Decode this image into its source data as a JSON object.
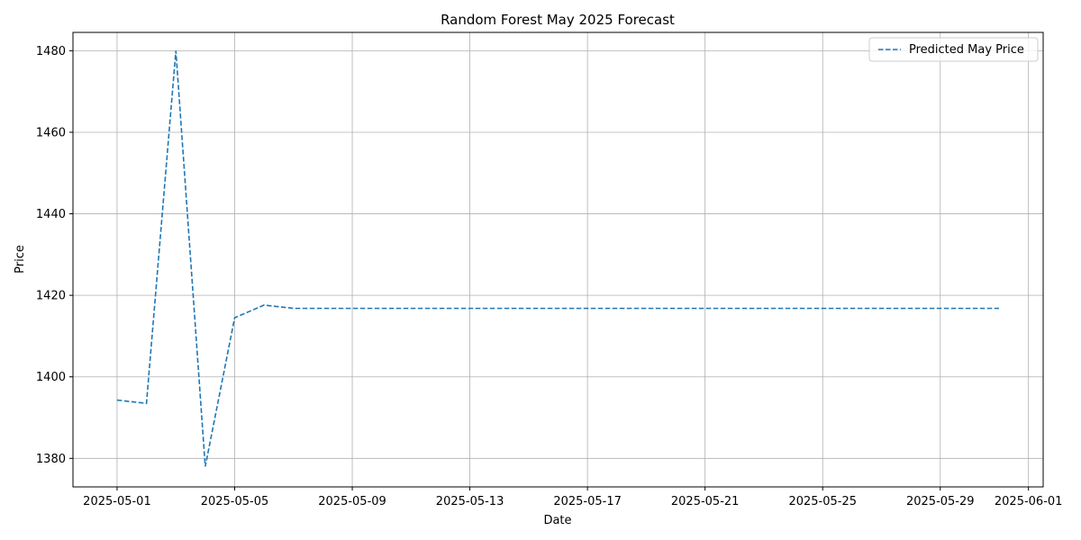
{
  "chart_data": {
    "type": "line",
    "title": "Random Forest May 2025 Forecast",
    "xlabel": "Date",
    "ylabel": "Price",
    "x_tick_labels": [
      "2025-05-01",
      "2025-05-05",
      "2025-05-09",
      "2025-05-13",
      "2025-05-17",
      "2025-05-21",
      "2025-05-25",
      "2025-05-29",
      "2025-06-01"
    ],
    "x_tick_days": [
      1,
      5,
      9,
      13,
      17,
      21,
      25,
      29,
      32
    ],
    "y_ticks": [
      1380,
      1400,
      1420,
      1440,
      1460,
      1480
    ],
    "xlim_days": [
      -0.5,
      32.5
    ],
    "ylim": [
      1373,
      1484.5
    ],
    "grid": true,
    "legend_position": "top-right",
    "series": [
      {
        "name": "Predicted May Price",
        "color": "#1f77b4",
        "linestyle": "dashed",
        "x_days": [
          1,
          2,
          3,
          4,
          5,
          6,
          7,
          8,
          9,
          10,
          11,
          12,
          13,
          14,
          15,
          16,
          17,
          18,
          19,
          20,
          21,
          22,
          23,
          24,
          25,
          26,
          27,
          28,
          29,
          30,
          31
        ],
        "values": [
          1394.3,
          1393.5,
          1480.0,
          1378.0,
          1414.5,
          1417.6,
          1416.8,
          1416.8,
          1416.8,
          1416.8,
          1416.8,
          1416.8,
          1416.8,
          1416.8,
          1416.8,
          1416.8,
          1416.8,
          1416.8,
          1416.8,
          1416.8,
          1416.8,
          1416.8,
          1416.8,
          1416.8,
          1416.8,
          1416.8,
          1416.8,
          1416.8,
          1416.8,
          1416.8,
          1416.8
        ]
      }
    ]
  }
}
